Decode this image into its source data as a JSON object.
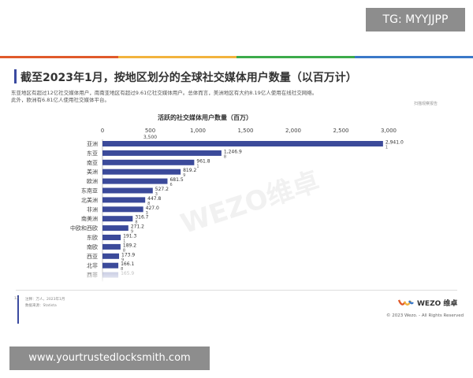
{
  "badge": "TG: MYYJJPP",
  "stripe_colors": [
    "#e05a2b",
    "#f2b33d",
    "#3cab4a",
    "#3a78c8"
  ],
  "title": "截至2023年1月，按地区划分的全球社交媒体用户数量（以百万计）",
  "description": [
    "东亚地区有超过12亿社交媒体用户，南南亚地区有超过9.61亿社交媒体用户。总体而言，美洲地区有大约8.19亿人使用在线社交网络。",
    "此外，欧洲有6.81亿人使用社交媒体平台。"
  ],
  "right_note": "扫描观察报告",
  "chart_data": {
    "type": "bar",
    "orientation": "horizontal",
    "title": "活跃的社交媒体用户数量（百万）",
    "xlim": [
      0,
      3000
    ],
    "ticks": [
      "0",
      "500",
      "1,000",
      "1,500",
      "2,000",
      "2,500",
      "3,000"
    ],
    "extra_tick": "3,500",
    "categories": [
      "亚洲",
      "东亚",
      "南亚",
      "美洲",
      "欧洲",
      "东南亚",
      "北美洲",
      "非洲",
      "南美洲",
      "中欧和西欧",
      "东欧",
      "南欧",
      "西亚",
      "北非",
      "西非"
    ],
    "values": [
      2941.0,
      1246.9,
      961.8,
      819.2,
      681.5,
      527.2,
      447.8,
      427.0,
      316.7,
      271.2,
      191.3,
      189.2,
      173.9,
      166.1,
      165.9
    ],
    "value_labels": [
      "2,941.0",
      "1,246.9",
      "961.8",
      "819.2",
      "681.5",
      "527.2",
      "447.8",
      "427.0",
      "316.7",
      "271.2",
      "191.3",
      "189.2",
      "173.9",
      "166.1",
      "165.9"
    ],
    "sub_labels": [
      "1",
      "8",
      "1",
      "9",
      "6",
      "3",
      "8",
      "3",
      "8",
      "9",
      "1",
      "8",
      "9",
      "8",
      ""
    ],
    "bar_color": "#3b4a9a",
    "grid": false
  },
  "watermark": "WEZO维卓",
  "page_number": "12",
  "footnotes": [
    "注释：万人，2023年1月",
    "数据来源：Statista"
  ],
  "logo_text": "WEZO 维卓",
  "copyright": "© 2023 Wezo. - All Rights Reserved",
  "url_banner": "www.yourtrustedlocksmith.com"
}
